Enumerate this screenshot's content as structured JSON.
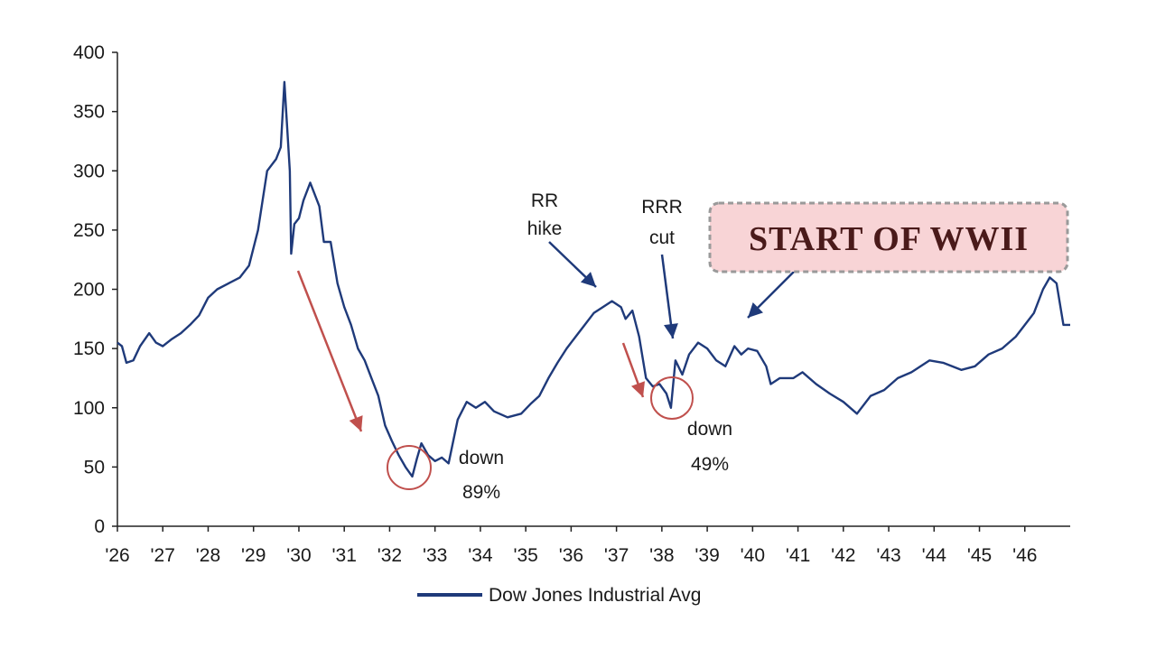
{
  "chart_data": {
    "type": "line",
    "title": "",
    "xlabel": "",
    "ylabel": "",
    "ylim": [
      0,
      400
    ],
    "y_ticks": [
      0,
      50,
      100,
      150,
      200,
      250,
      300,
      350,
      400
    ],
    "x_ticks": [
      "'26",
      "'27",
      "'28",
      "'29",
      "'30",
      "'31",
      "'32",
      "'33",
      "'34",
      "'35",
      "'36",
      "'37",
      "'38",
      "'39",
      "'40",
      "'41",
      "'42",
      "'43",
      "'44",
      "'45",
      "'46"
    ],
    "grid": false,
    "legend_position": "bottom",
    "series": [
      {
        "name": "Dow Jones Industrial Avg",
        "color": "#1f3a7a",
        "x": [
          1926.0,
          1926.1,
          1926.2,
          1926.35,
          1926.5,
          1926.7,
          1926.85,
          1927.0,
          1927.2,
          1927.4,
          1927.6,
          1927.8,
          1928.0,
          1928.2,
          1928.45,
          1928.7,
          1928.9,
          1929.1,
          1929.3,
          1929.5,
          1929.6,
          1929.68,
          1929.8,
          1929.83,
          1929.9,
          1930.0,
          1930.1,
          1930.25,
          1930.45,
          1930.55,
          1930.7,
          1930.85,
          1931.0,
          1931.15,
          1931.3,
          1931.45,
          1931.6,
          1931.75,
          1931.9,
          1932.05,
          1932.2,
          1932.35,
          1932.5,
          1932.6,
          1932.7,
          1932.85,
          1933.0,
          1933.15,
          1933.3,
          1933.5,
          1933.7,
          1933.9,
          1934.1,
          1934.3,
          1934.6,
          1934.9,
          1935.1,
          1935.3,
          1935.5,
          1935.7,
          1935.9,
          1936.1,
          1936.3,
          1936.5,
          1936.7,
          1936.9,
          1937.1,
          1937.2,
          1937.35,
          1937.5,
          1937.65,
          1937.8,
          1937.95,
          1938.1,
          1938.2,
          1938.3,
          1938.45,
          1938.6,
          1938.8,
          1939.0,
          1939.2,
          1939.4,
          1939.6,
          1939.75,
          1939.9,
          1940.1,
          1940.3,
          1940.4,
          1940.6,
          1940.9,
          1941.1,
          1941.4,
          1941.7,
          1942.0,
          1942.3,
          1942.6,
          1942.9,
          1943.2,
          1943.5,
          1943.9,
          1944.2,
          1944.6,
          1944.9,
          1945.2,
          1945.5,
          1945.8,
          1946.0,
          1946.2,
          1946.4,
          1946.55,
          1946.7,
          1946.85,
          1947.0
        ],
        "values": [
          155,
          152,
          138,
          140,
          152,
          163,
          155,
          152,
          158,
          163,
          170,
          178,
          193,
          200,
          205,
          210,
          220,
          250,
          300,
          310,
          320,
          375,
          300,
          230,
          255,
          260,
          275,
          290,
          270,
          240,
          240,
          205,
          185,
          170,
          150,
          140,
          125,
          110,
          85,
          72,
          60,
          50,
          42,
          57,
          70,
          60,
          55,
          58,
          53,
          90,
          105,
          100,
          105,
          97,
          92,
          95,
          103,
          110,
          125,
          138,
          150,
          160,
          170,
          180,
          185,
          190,
          185,
          175,
          182,
          160,
          125,
          118,
          120,
          112,
          100,
          140,
          128,
          145,
          155,
          150,
          140,
          135,
          152,
          145,
          150,
          148,
          135,
          120,
          125,
          125,
          130,
          120,
          112,
          105,
          95,
          110,
          115,
          125,
          130,
          140,
          138,
          132,
          135,
          145,
          150,
          160,
          170,
          180,
          200,
          210,
          205,
          170,
          170
        ]
      }
    ],
    "annotations": {
      "rr_hike": [
        "RR",
        "hike"
      ],
      "rrr_cut": [
        "RRR",
        "cut"
      ],
      "crash1": [
        "down",
        "89%"
      ],
      "crash2": [
        "down",
        "49%"
      ],
      "callout": "START OF WWII"
    }
  }
}
